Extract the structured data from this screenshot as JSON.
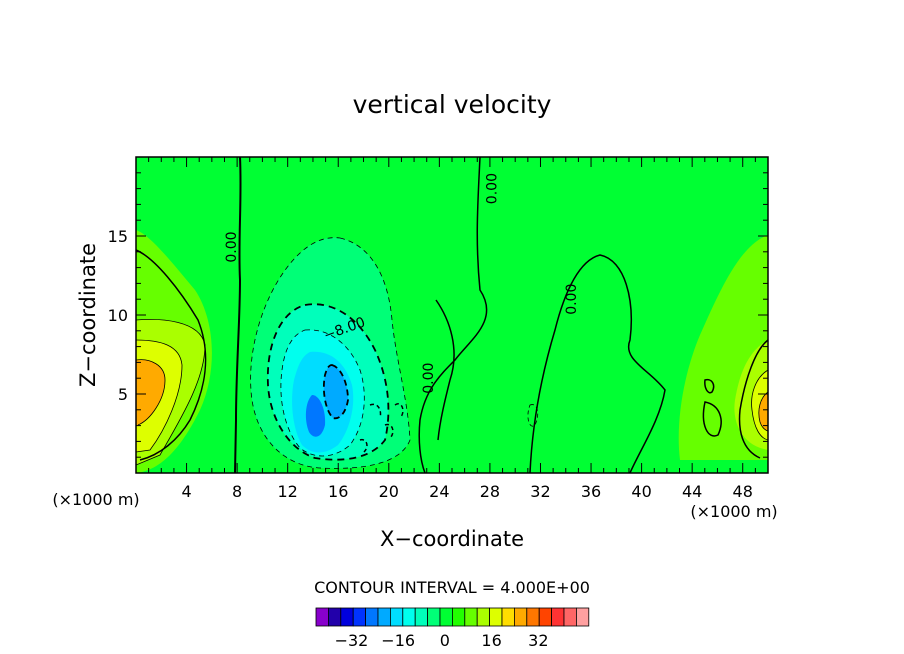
{
  "chart_data": {
    "type": "heatmap",
    "title": "vertical velocity",
    "xlabel": "X−coordinate",
    "ylabel": "Z−coordinate",
    "x_unit": "(×1000 m)",
    "x_unit_right": "(×1000 m)",
    "xlim": [
      0,
      50
    ],
    "ylim": [
      0,
      20
    ],
    "x_ticks": [
      4,
      8,
      12,
      16,
      20,
      24,
      28,
      32,
      36,
      40,
      44,
      48
    ],
    "y_ticks": [
      5,
      10,
      15
    ],
    "contour_interval_text": "CONTOUR INTERVAL = 4.000E+00",
    "contour_labels": [
      {
        "text": "0.00",
        "x": 7.6,
        "y": 14.3,
        "rotation": -90
      },
      {
        "text": "0.00",
        "x": 28.2,
        "y": 18.0,
        "rotation": -90
      },
      {
        "text": "0.00",
        "x": 34.5,
        "y": 11.0,
        "rotation": -90
      },
      {
        "text": "0.00",
        "x": 23.2,
        "y": 6.0,
        "rotation": -90
      },
      {
        "text": "−8.00",
        "x": 16.5,
        "y": 9.1,
        "rotation": -20
      }
    ],
    "colorbar": {
      "colors": [
        "#8800cc",
        "#2200aa",
        "#0000dd",
        "#0033ff",
        "#0077ff",
        "#00aaff",
        "#00ddff",
        "#00ffee",
        "#00ffbb",
        "#00ff77",
        "#00ff33",
        "#22ff00",
        "#66ff00",
        "#aaff00",
        "#ddff00",
        "#ffdd00",
        "#ffaa00",
        "#ff7700",
        "#ff4400",
        "#ff3333",
        "#ff6666",
        "#ffa0a0"
      ],
      "ticks": [
        "−32",
        "−16",
        "0",
        "16",
        "32"
      ]
    }
  }
}
